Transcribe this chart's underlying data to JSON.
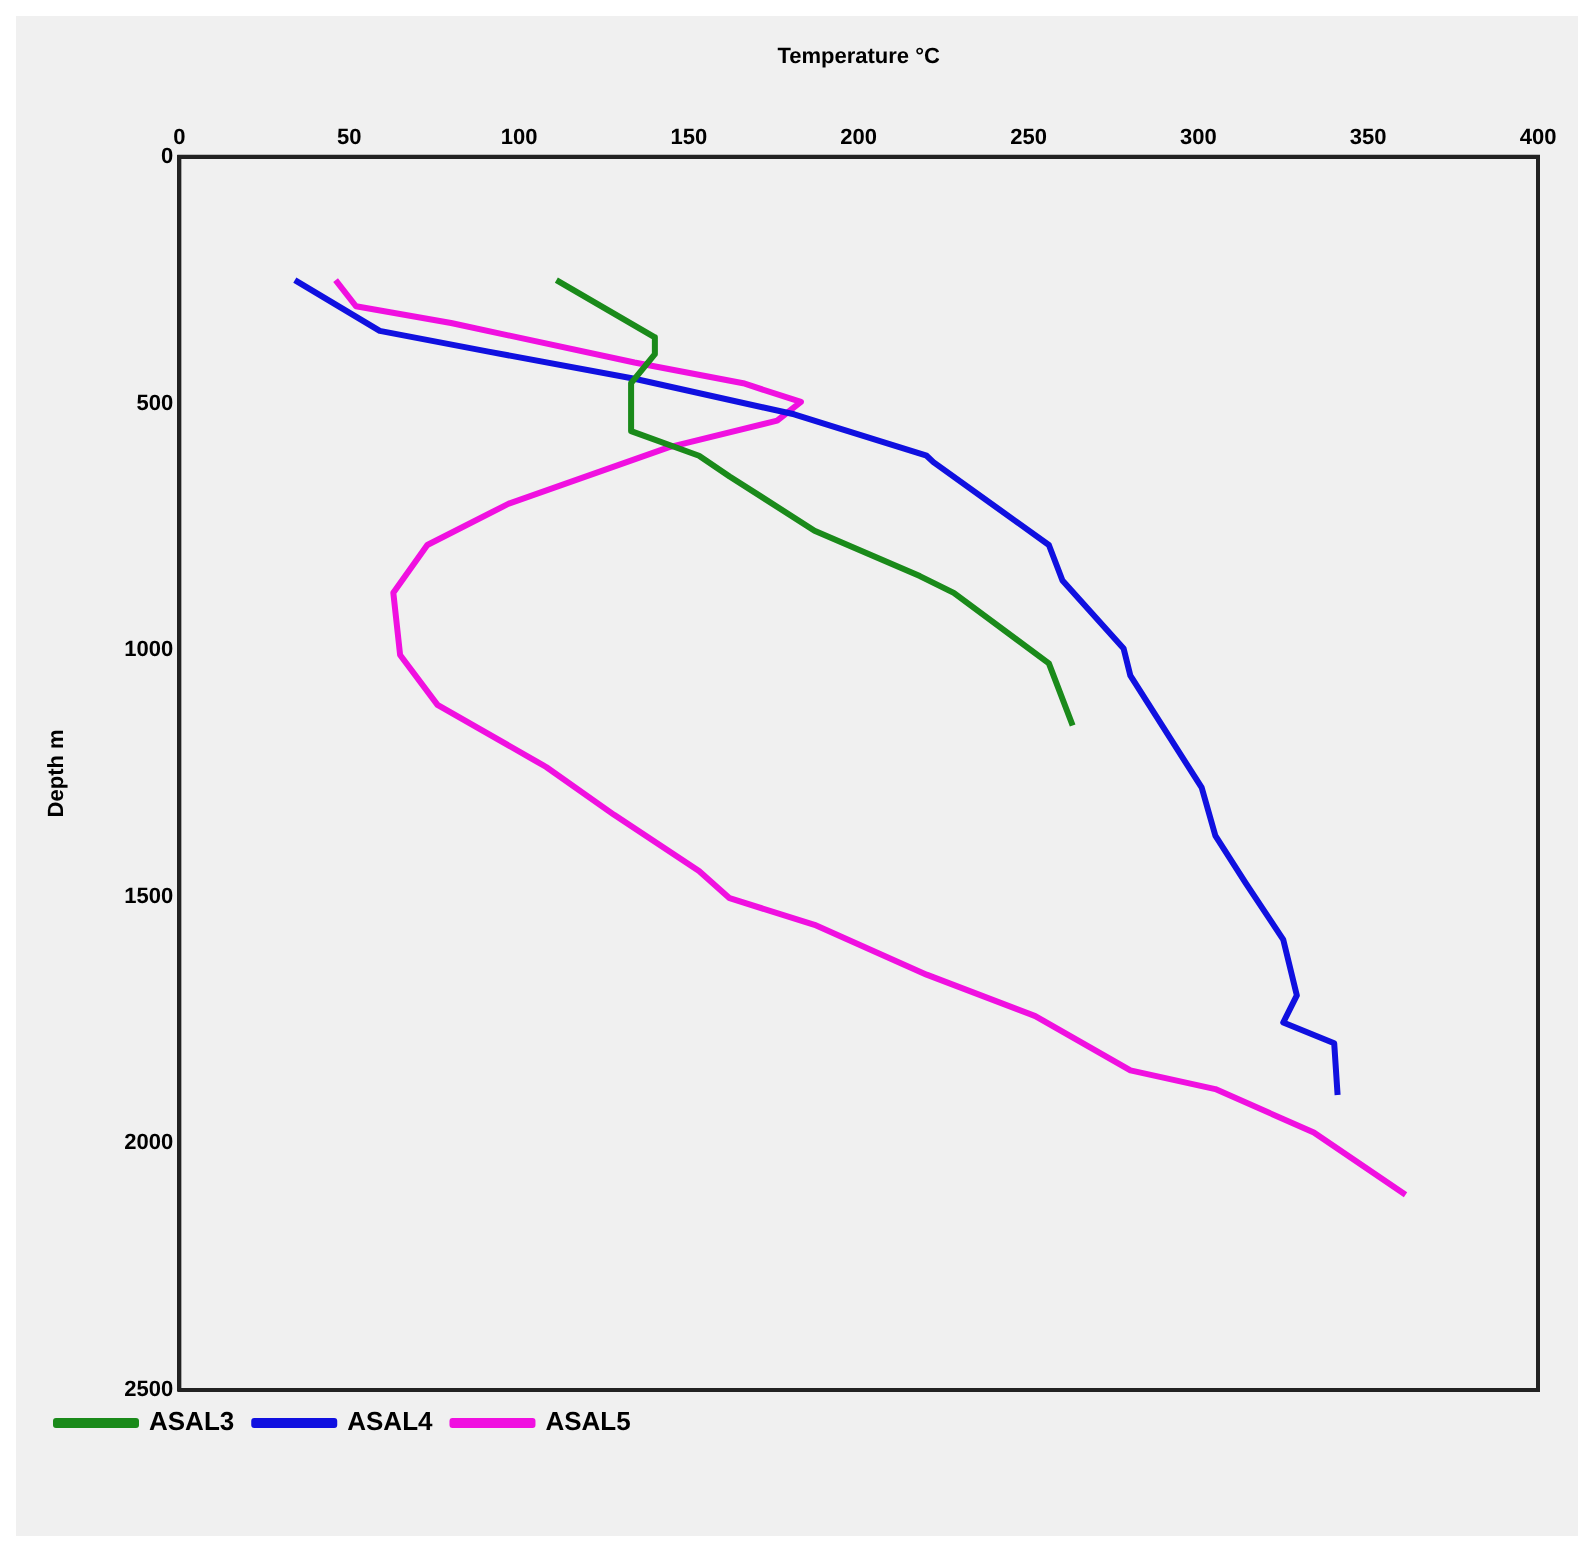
{
  "chart_data": {
    "type": "line",
    "xlabel": "Temperature °C",
    "ylabel": "Depth m",
    "xlim": [
      0,
      400
    ],
    "xticks": [
      0,
      50,
      100,
      150,
      200,
      250,
      300,
      350,
      400
    ],
    "ylim": [
      2500,
      0
    ],
    "yticks": [
      0,
      500,
      1000,
      1500,
      2000,
      2500
    ],
    "grid": false,
    "legend": "bottom left",
    "marker": "none",
    "line_style": "solid",
    "series": [
      {
        "name": "ASAL3",
        "color": "#1a8a1a",
        "x": [
          111,
          140,
          140,
          133,
          133,
          153,
          162,
          187,
          218,
          228,
          256,
          263
        ],
        "values": [
          250,
          366,
          400,
          459,
          556,
          606,
          648,
          758,
          850,
          884,
          1027,
          1153
        ]
      },
      {
        "name": "ASAL4",
        "color": "#1010e0",
        "x": [
          34,
          59,
          91,
          134,
          181,
          220,
          222,
          256,
          260,
          278,
          280,
          301,
          305,
          314,
          325,
          329,
          325,
          340,
          341
        ],
        "values": [
          250,
          353,
          395,
          450,
          522,
          606,
          619,
          787,
          859,
          997,
          1052,
          1279,
          1376,
          1473,
          1587,
          1700,
          1755,
          1797,
          1902
        ]
      },
      {
        "name": "ASAL5",
        "color": "#f010e0",
        "x": [
          46,
          52,
          80,
          134,
          166,
          183,
          176,
          144,
          97,
          73,
          63,
          65,
          76,
          108,
          128,
          153,
          162,
          187,
          220,
          252,
          280,
          305,
          334,
          361
        ],
        "values": [
          250,
          303,
          337,
          417,
          459,
          497,
          535,
          589,
          703,
          787,
          884,
          1010,
          1111,
          1237,
          1334,
          1448,
          1503,
          1557,
          1658,
          1742,
          1852,
          1890,
          1978,
          2104
        ]
      }
    ]
  }
}
